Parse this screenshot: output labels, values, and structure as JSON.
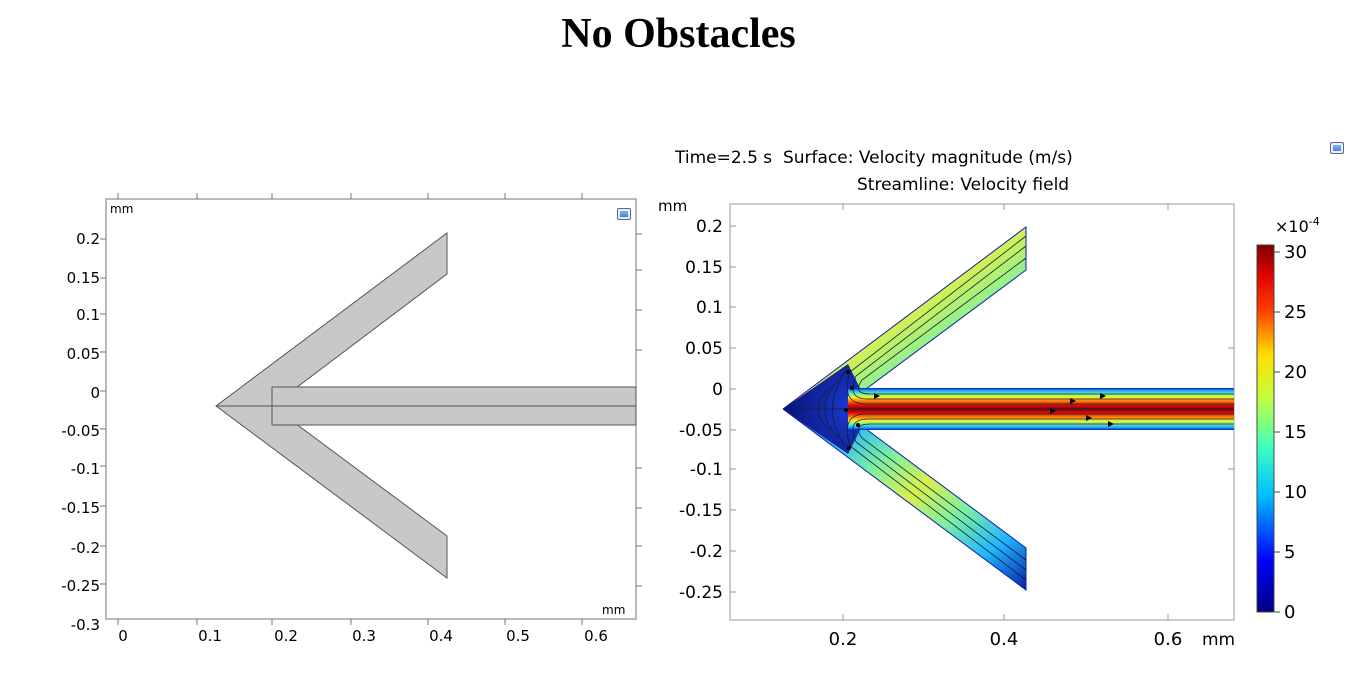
{
  "page": {
    "title": "No Obstacles"
  },
  "left_plot": {
    "unit_top": "mm",
    "unit_bottom": "mm",
    "y_ticks": [
      "0.2",
      "0.15",
      "0.1",
      "0.05",
      "0",
      "-0.05",
      "-0.1",
      "-0.15",
      "-0.2",
      "-0.25",
      "-0.3"
    ],
    "x_ticks": [
      "0",
      "0.1",
      "0.2",
      "0.3",
      "0.4",
      "0.5",
      "0.6"
    ],
    "geometry_fill": "#c8c8c8"
  },
  "right_plot": {
    "header_line1": "Time=2.5 s  Surface: Velocity magnitude (m/s)",
    "header_line2": "Streamline: Velocity field",
    "unit_y": "mm",
    "unit_x": "mm",
    "y_ticks": [
      "0.2",
      "0.15",
      "0.1",
      "0.05",
      "0",
      "-0.05",
      "-0.1",
      "-0.15",
      "-0.2",
      "-0.25"
    ],
    "x_ticks": [
      "0.2",
      "0.4",
      "0.6"
    ],
    "colorbar": {
      "exponent": "×10",
      "exponent_power": "-4",
      "ticks": [
        "30",
        "25",
        "20",
        "15",
        "10",
        "5",
        "0"
      ]
    }
  },
  "icons": [
    "plot-toolbar-icon",
    "plot-toolbar-icon"
  ]
}
